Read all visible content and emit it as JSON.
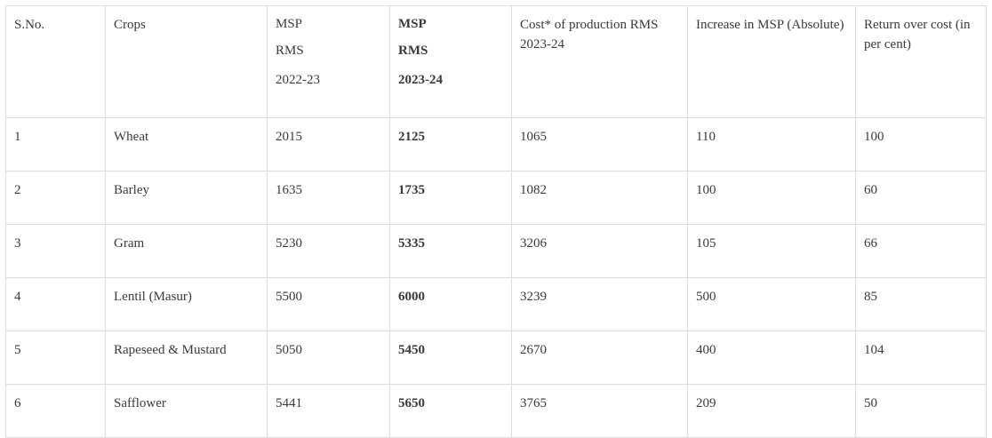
{
  "table": {
    "headers": {
      "sno": "S.No.",
      "crops": "Crops",
      "msp_prev": [
        "MSP",
        "RMS",
        "2022-23"
      ],
      "msp_curr": [
        "MSP",
        "RMS",
        "2023-24"
      ],
      "cost": "Cost* of production RMS 2023-24",
      "increase": "Increase in MSP (Absolute)",
      "return": "Return over cost (in per cent)"
    },
    "rows": [
      {
        "sno": "1",
        "crop": "Wheat",
        "msp_prev": "2015",
        "msp_curr": "2125",
        "cost": "1065",
        "increase": "110",
        "return": "100"
      },
      {
        "sno": "2",
        "crop": "Barley",
        "msp_prev": "1635",
        "msp_curr": "1735",
        "cost": "1082",
        "increase": "100",
        "return": "60"
      },
      {
        "sno": "3",
        "crop": "Gram",
        "msp_prev": "5230",
        "msp_curr": "5335",
        "cost": "3206",
        "increase": "105",
        "return": "66"
      },
      {
        "sno": "4",
        "crop": "Lentil (Masur)",
        "msp_prev": "5500",
        "msp_curr": "6000",
        "cost": "3239",
        "increase": "500",
        "return": "85"
      },
      {
        "sno": "5",
        "crop": "Rapeseed & Mustard",
        "msp_prev": "5050",
        "msp_curr": "5450",
        "cost": "2670",
        "increase": "400",
        "return": "104"
      },
      {
        "sno": "6",
        "crop": "Safflower",
        "msp_prev": "5441",
        "msp_curr": "5650",
        "cost": "3765",
        "increase": "209",
        "return": "50"
      }
    ]
  }
}
